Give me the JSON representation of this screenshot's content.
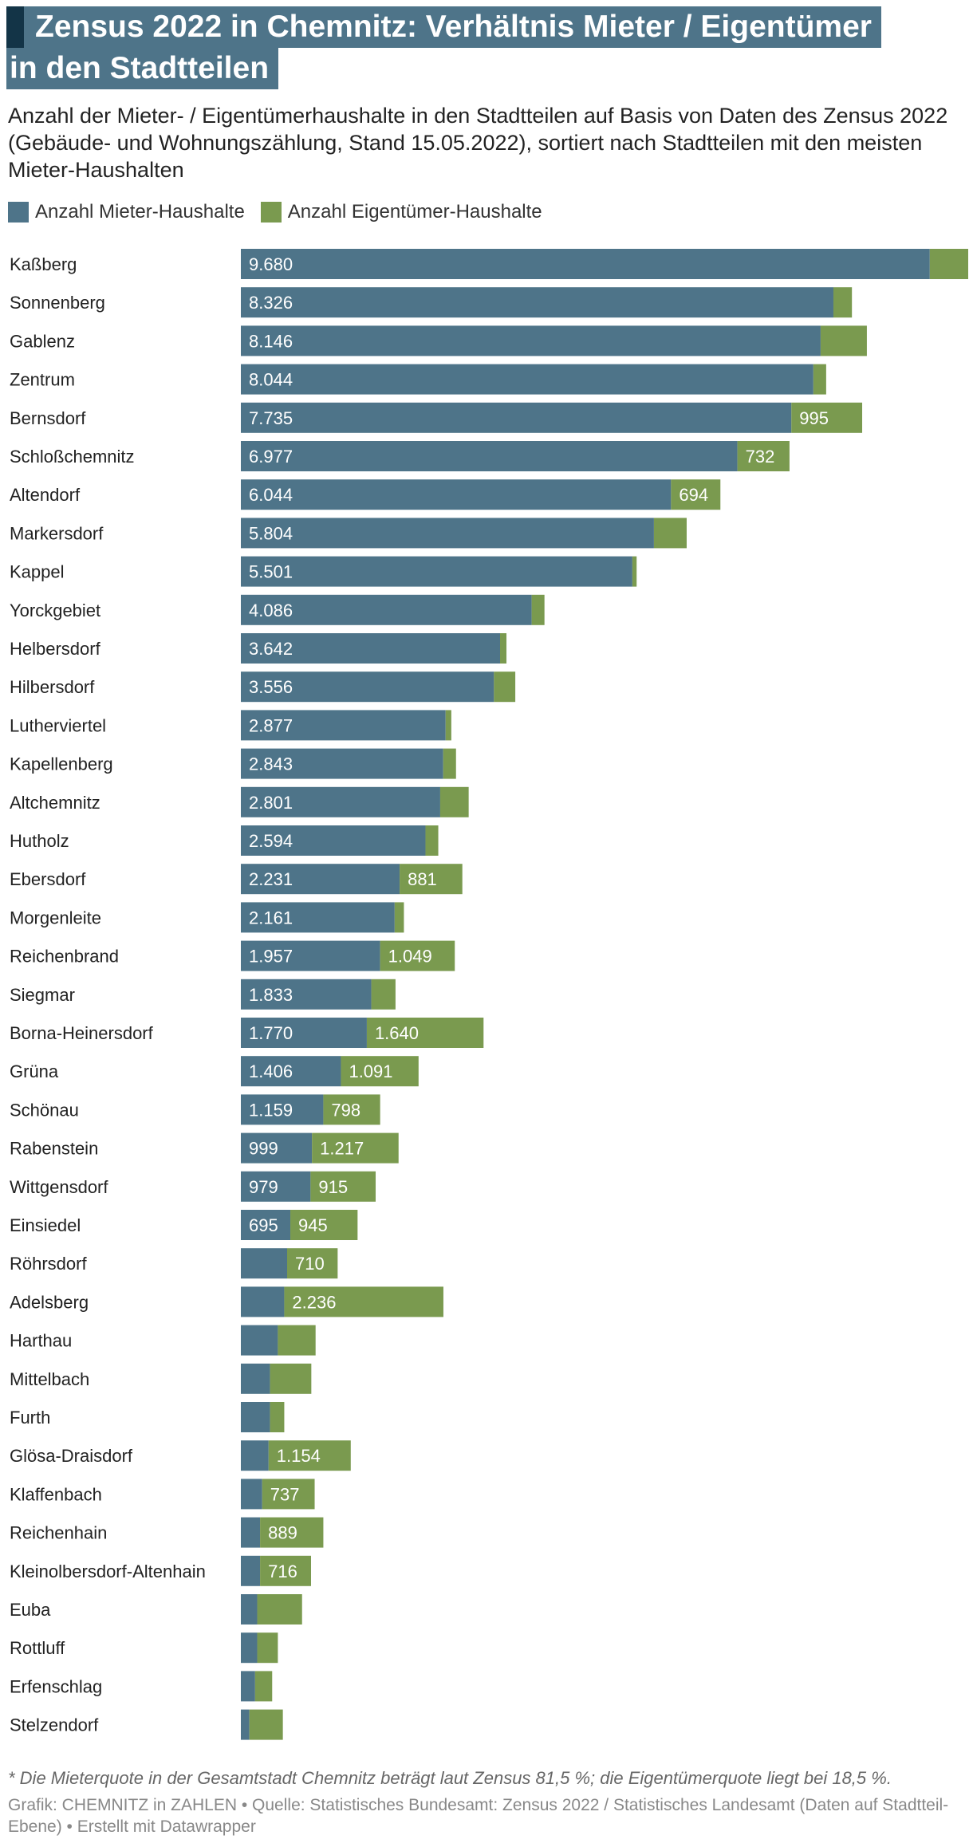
{
  "title_line1": "Zensus 2022 in Chemnitz: Verhältnis Mieter / Eigentümer",
  "title_line2": "in den Stadtteilen",
  "subtitle": "Anzahl der Mieter- / Eigentümerhaushalte in den Stadtteilen auf Basis von Daten des Zensus 2022 (Gebäude- und Wohnungszählung, Stand 15.05.2022), sortiert nach Stadtteilen mit den meisten Mieter-Haushalten",
  "colors": {
    "renter": "#4e7489",
    "owner": "#7a9a4f",
    "title_bg": "#4e7489",
    "title_accent": "#133447"
  },
  "footnote": "* Die Mieterquote in der Gesamtstadt Chemnitz beträgt laut Zensus 81,5 %; die Eigentümerquote liegt bei 18,5 %.",
  "credits": "Grafik: CHEMNITZ in ZAHLEN • Quelle: Statistisches Bundesamt: Zensus 2022 / Statistisches Landesamt (Daten auf Stadtteil-Ebene) • Erstellt mit Datawrapper",
  "chart_data": {
    "type": "bar",
    "orientation": "horizontal",
    "stacked": true,
    "categories": [
      "Kaßberg",
      "Sonnenberg",
      "Gablenz",
      "Zentrum",
      "Bernsdorf",
      "Schloßchemnitz",
      "Altendorf",
      "Markersdorf",
      "Kappel",
      "Yorckgebiet",
      "Helbersdorf",
      "Hilbersdorf",
      "Lutherviertel",
      "Kapellenberg",
      "Altchemnitz",
      "Hutholz",
      "Ebersdorf",
      "Morgenleite",
      "Reichenbrand",
      "Siegmar",
      "Borna-Heinersdorf",
      "Grüna",
      "Schönau",
      "Rabenstein",
      "Wittgensdorf",
      "Einsiedel",
      "Röhrsdorf",
      "Adelsberg",
      "Harthau",
      "Mittelbach",
      "Furth",
      "Glösa-Draisdorf",
      "Klaffenbach",
      "Reichenhain",
      "Kleinolbersdorf-Altenhain",
      "Euba",
      "Rottluff",
      "Erfenschlag",
      "Stelzendorf"
    ],
    "series": [
      {
        "name": "Anzahl Mieter-Haushalte",
        "values": [
          9680,
          8326,
          8146,
          8044,
          7735,
          6977,
          6044,
          5804,
          5501,
          4086,
          3642,
          3556,
          2877,
          2843,
          2801,
          2594,
          2231,
          2161,
          1957,
          1833,
          1770,
          1406,
          1159,
          999,
          979,
          695,
          650,
          610,
          520,
          410,
          410,
          390,
          300,
          270,
          270,
          230,
          230,
          200,
          120
        ],
        "labels": [
          "9.680",
          "8.326",
          "8.146",
          "8.044",
          "7.735",
          "6.977",
          "6.044",
          "5.804",
          "5.501",
          "4.086",
          "3.642",
          "3.556",
          "2.877",
          "2.843",
          "2.801",
          "2.594",
          "2.231",
          "2.161",
          "1.957",
          "1.833",
          "1.770",
          "1.406",
          "1.159",
          "999",
          "979",
          "695",
          "",
          "",
          "",
          "",
          "",
          "",
          "",
          "",
          "",
          "",
          "",
          "",
          ""
        ]
      },
      {
        "name": "Anzahl Eigentümer-Haushalte",
        "values": [
          540,
          260,
          650,
          180,
          995,
          732,
          694,
          460,
          60,
          180,
          90,
          300,
          80,
          180,
          400,
          180,
          881,
          130,
          1049,
          340,
          1640,
          1091,
          798,
          1217,
          915,
          945,
          710,
          2236,
          530,
          580,
          200,
          1154,
          737,
          889,
          716,
          630,
          290,
          240,
          470
        ],
        "labels": [
          "",
          "",
          "",
          "",
          "995",
          "732",
          "694",
          "",
          "",
          "",
          "",
          "",
          "",
          "",
          "",
          "",
          "881",
          "",
          "1.049",
          "",
          "1.640",
          "1.091",
          "798",
          "1.217",
          "915",
          "945",
          "710",
          "2.236",
          "",
          "",
          "",
          "1.154",
          "737",
          "889",
          "716",
          "",
          "",
          "",
          ""
        ]
      }
    ],
    "xlim": [
      0,
      10220
    ]
  }
}
